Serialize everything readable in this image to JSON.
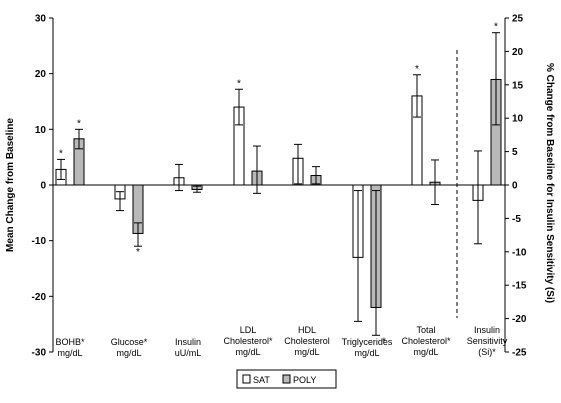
{
  "chart_data": {
    "type": "bar",
    "ylabel": "Mean Change from Baseline",
    "ylabel_right": "% Change from Baseline for Insulin Sensitivity (Si)",
    "ylim": [
      -30,
      30
    ],
    "ylim_right": [
      -25,
      25
    ],
    "yticks": [
      "30",
      "20",
      "10",
      "0",
      "-10",
      "-20",
      "-30"
    ],
    "yticks_right": [
      "25",
      "20",
      "15",
      "10",
      "5",
      "0",
      "-5",
      "-10",
      "-15",
      "-20",
      "-25"
    ],
    "categories": [
      {
        "lines": [
          "BOHB*",
          "mg/dL"
        ]
      },
      {
        "lines": [
          "Glucose*",
          "mg/dL"
        ]
      },
      {
        "lines": [
          "Insulin",
          "uU/mL"
        ]
      },
      {
        "lines": [
          "LDL",
          "Cholesterol*",
          "mg/dL"
        ]
      },
      {
        "lines": [
          "HDL",
          "Cholesterol",
          "mg/dL"
        ]
      },
      {
        "lines": [
          "Triglycerides",
          "mg/dL"
        ]
      },
      {
        "lines": [
          "Total",
          "Cholesterol*",
          "mg/dL"
        ]
      },
      {
        "lines": [
          "Insulin",
          "Sensitivity",
          "(Si)*"
        ]
      }
    ],
    "series": [
      {
        "name": "SAT",
        "color": "#ffffff",
        "values": [
          2.8,
          -2.5,
          1.3,
          14.0,
          4.8,
          -13.0,
          16.0,
          -2.3
        ],
        "err_hi": [
          4.6,
          -1.2,
          3.7,
          17.2,
          7.3,
          -1.0,
          19.8,
          5.1
        ],
        "err_lo": [
          1.0,
          -4.6,
          -1.0,
          10.8,
          0.2,
          -24.5,
          12.2,
          -8.8
        ],
        "star": [
          true,
          false,
          false,
          true,
          false,
          false,
          true,
          false
        ]
      },
      {
        "name": "POLY",
        "color": "#b9b9b9",
        "values": [
          8.3,
          -8.7,
          -0.8,
          2.5,
          1.7,
          -22.0,
          0.5,
          15.8
        ],
        "err_hi": [
          10.0,
          -6.8,
          -0.2,
          7.0,
          3.3,
          -1.0,
          4.5,
          22.8
        ],
        "err_lo": [
          6.5,
          -11.0,
          -1.3,
          -1.5,
          0.2,
          -27.0,
          -3.5,
          9.0
        ],
        "star": [
          true,
          true,
          false,
          false,
          false,
          true,
          false,
          true
        ]
      }
    ],
    "legend": {
      "position": "bottom",
      "items": [
        "SAT",
        "POLY"
      ]
    }
  }
}
